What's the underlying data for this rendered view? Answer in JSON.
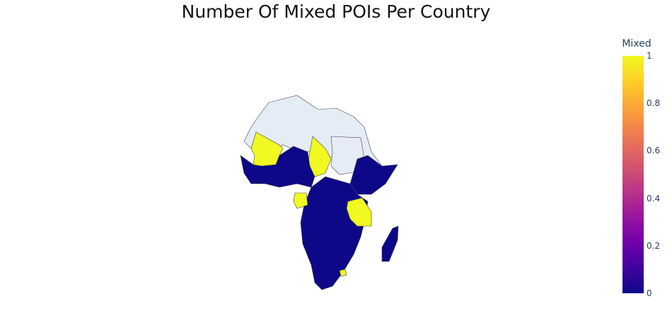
{
  "title": "Number Of Mixed POIs Per Country",
  "colorbar": {
    "title": "Mixed",
    "ticks": [
      {
        "label": "1",
        "value": 1.0
      },
      {
        "label": "0.8",
        "value": 0.8
      },
      {
        "label": "0.6",
        "value": 0.6
      },
      {
        "label": "0.4",
        "value": 0.4
      },
      {
        "label": "0.2",
        "value": 0.2
      },
      {
        "label": "0",
        "value": 0.0
      }
    ]
  },
  "colors": {
    "no_data": "#e5ecf6",
    "value_0": "#0d0887",
    "value_1": "#f0f921",
    "border": "#444444"
  },
  "chart_data": {
    "type": "choropleth",
    "title": "Number Of Mixed POIs Per Country",
    "legend_title": "Mixed",
    "range": [
      0,
      1
    ]
  }
}
